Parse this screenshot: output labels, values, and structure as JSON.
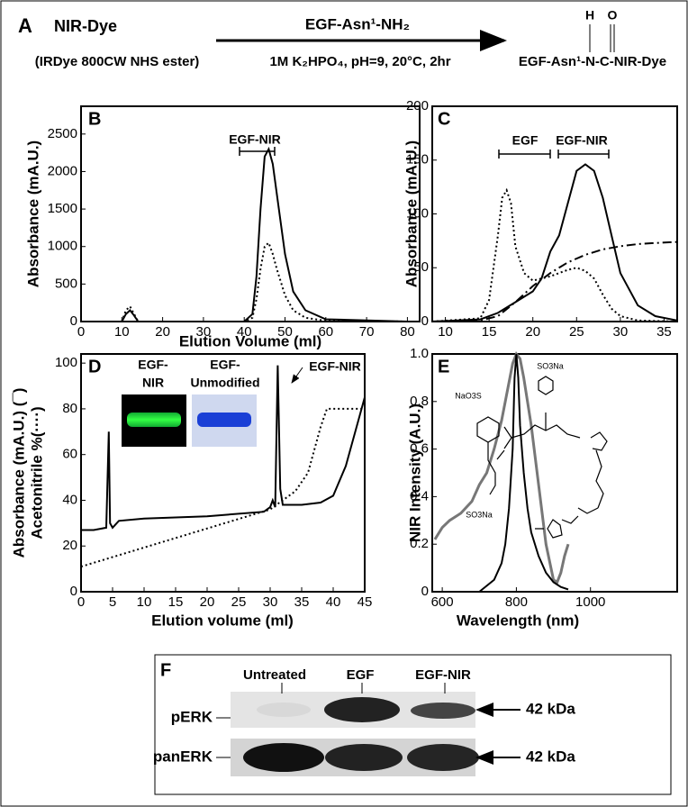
{
  "scheme": {
    "panel": "A",
    "reactant": "NIR-Dye",
    "reactant_note": "(IRDye 800CW NHS ester)",
    "reagent": "EGF-Asn¹-NH₂",
    "conditions": "1M K₂HPO₄, pH=9, 20°C, 2hr",
    "product": "EGF-Asn¹-N-C-NIR-Dye",
    "product_atoms": [
      "H",
      "O"
    ]
  },
  "chart_data": [
    {
      "type": "line",
      "panel": "B",
      "xlabel": "Elution Volume (ml)",
      "ylabel": [
        "Absorbance (mA.U.)"
      ],
      "annotations": [
        "EGF-NIR"
      ],
      "xlim": [
        0,
        83
      ],
      "ylim": [
        0,
        2870
      ],
      "xticks": [
        0,
        10,
        20,
        30,
        40,
        50,
        60,
        70,
        80
      ],
      "yticks": [
        0,
        500,
        1000,
        1500,
        2000,
        2500
      ],
      "series": [
        {
          "color": "#000000",
          "line_style": "solid",
          "x": [
            0,
            10,
            11,
            12,
            13,
            14,
            20,
            40,
            42,
            43,
            44,
            45,
            46,
            47,
            48,
            50,
            52,
            55,
            60,
            80
          ],
          "values": [
            0,
            0,
            100,
            150,
            80,
            0,
            0,
            0,
            100,
            600,
            1500,
            2200,
            2300,
            2100,
            1700,
            900,
            400,
            150,
            30,
            0
          ]
        },
        {
          "color": "#000000",
          "line_style": "dotted",
          "x": [
            0,
            10,
            11,
            12,
            13,
            14,
            20,
            40,
            42,
            43,
            44,
            45,
            46,
            47,
            48,
            50,
            52,
            55,
            60,
            80
          ],
          "values": [
            0,
            0,
            150,
            200,
            100,
            0,
            0,
            0,
            50,
            300,
            700,
            1000,
            1050,
            900,
            700,
            350,
            150,
            50,
            10,
            0
          ]
        }
      ]
    },
    {
      "type": "line",
      "panel": "C",
      "ylabel": [
        "Absorbance (mA.U.)"
      ],
      "annotations": [
        "EGF",
        "EGF-NIR"
      ],
      "xlim": [
        8.5,
        36.5
      ],
      "ylim": [
        0,
        200
      ],
      "xticks": [
        10,
        15,
        20,
        25,
        30,
        35
      ],
      "yticks": [
        0,
        50,
        100,
        150,
        200
      ],
      "series": [
        {
          "color": "#000000",
          "line_style": "solid",
          "x": [
            8.5,
            14,
            16,
            18,
            20,
            21,
            22,
            23,
            24,
            25,
            26,
            27,
            28,
            29,
            30,
            32,
            34,
            36.5
          ],
          "values": [
            0,
            2,
            8,
            18,
            28,
            40,
            65,
            80,
            110,
            140,
            146,
            140,
            115,
            80,
            45,
            15,
            5,
            1
          ]
        },
        {
          "color": "#000000",
          "line_style": "dotted",
          "x": [
            8.5,
            14,
            15,
            16,
            16.5,
            17,
            17.5,
            18,
            19,
            20,
            22,
            24,
            25,
            26,
            27,
            28,
            29,
            30,
            32,
            36.5
          ],
          "values": [
            0,
            3,
            20,
            80,
            115,
            122,
            110,
            70,
            45,
            38,
            42,
            48,
            50,
            47,
            40,
            25,
            12,
            5,
            1,
            0
          ]
        },
        {
          "color": "#000000",
          "line_style": "dashdot",
          "x": [
            8.5,
            14,
            16,
            18,
            20,
            22,
            24,
            26,
            28,
            30,
            32,
            34,
            36.5
          ],
          "values": [
            0,
            1,
            5,
            18,
            33,
            45,
            55,
            62,
            67,
            70,
            72,
            73,
            74
          ]
        }
      ]
    },
    {
      "type": "line",
      "panel": "D",
      "xlabel": "Elution volume (ml)",
      "ylabel": [
        "Absorbance (mA.U.) (¯)",
        "Acetonitrile %(····)"
      ],
      "annotations": [
        "EGF-NIR"
      ],
      "inset_labels": [
        [
          "EGF-",
          "NIR"
        ],
        [
          "EGF-",
          "Unmodified"
        ]
      ],
      "xlim": [
        0,
        45
      ],
      "ylim": [
        0,
        104
      ],
      "xticks": [
        0,
        5,
        10,
        15,
        20,
        25,
        30,
        35,
        40,
        45
      ],
      "yticks": [
        0,
        20,
        40,
        60,
        80,
        100
      ],
      "series": [
        {
          "color": "#000000",
          "line_style": "solid",
          "x": [
            0,
            2,
            4,
            4.4,
            4.6,
            5,
            6,
            10,
            20,
            29,
            30,
            30.4,
            30.8,
            31.2,
            31.6,
            32,
            35,
            38,
            40,
            42,
            44,
            45
          ],
          "values": [
            27,
            27,
            28,
            70,
            30,
            28,
            31,
            32,
            33,
            35,
            37,
            40,
            37,
            99,
            45,
            38,
            38,
            39,
            42,
            55,
            75,
            85
          ]
        },
        {
          "color": "#000000",
          "line_style": "dotted",
          "x": [
            0,
            30,
            34,
            36,
            37,
            38,
            39,
            45
          ],
          "values": [
            11,
            36,
            44,
            52,
            62,
            72,
            80,
            80
          ]
        }
      ]
    },
    {
      "type": "line",
      "panel": "E",
      "xlabel": "Wavelength (nm)",
      "ylabel": [
        "NIR Intensity (A.U.)"
      ],
      "structure_labels": [
        "NaO3S",
        "SO3Na",
        "SO3Na"
      ],
      "xlim": [
        573,
        1234
      ],
      "ylim": [
        0,
        1
      ],
      "xticks": [
        600,
        800,
        1000
      ],
      "yticks": [
        0,
        0.2,
        0.4,
        0.6,
        0.8,
        {
          "value": 1,
          "label": "1.0"
        }
      ],
      "series": [
        {
          "color": "#777777",
          "line_style": "solid",
          "x": [
            580,
            600,
            620,
            650,
            680,
            700,
            720,
            740,
            760,
            770,
            780,
            790,
            800,
            810,
            820,
            840,
            860,
            880,
            900,
            910,
            920,
            930,
            940
          ],
          "values": [
            0.22,
            0.27,
            0.3,
            0.33,
            0.38,
            0.45,
            0.5,
            0.6,
            0.72,
            0.8,
            0.88,
            0.96,
            1.0,
            0.98,
            0.9,
            0.7,
            0.45,
            0.2,
            0.05,
            0.04,
            0.08,
            0.15,
            0.2
          ]
        },
        {
          "color": "#000000",
          "line_style": "solid",
          "x": [
            700,
            740,
            760,
            770,
            780,
            790,
            795,
            800,
            805,
            810,
            820,
            830,
            840,
            860,
            880,
            900,
            920,
            940
          ],
          "values": [
            0,
            0.05,
            0.12,
            0.2,
            0.35,
            0.6,
            0.9,
            1.0,
            0.9,
            0.7,
            0.5,
            0.35,
            0.25,
            0.15,
            0.08,
            0.04,
            0.02,
            0.01
          ]
        }
      ]
    }
  ],
  "western_blot": {
    "panel": "F",
    "lanes": [
      "Untreated",
      "EGF",
      "EGF-NIR"
    ],
    "rows": [
      {
        "label": "pERK",
        "size": "42 kDa"
      },
      {
        "label": "panERK",
        "size": "42 kDa"
      }
    ]
  }
}
